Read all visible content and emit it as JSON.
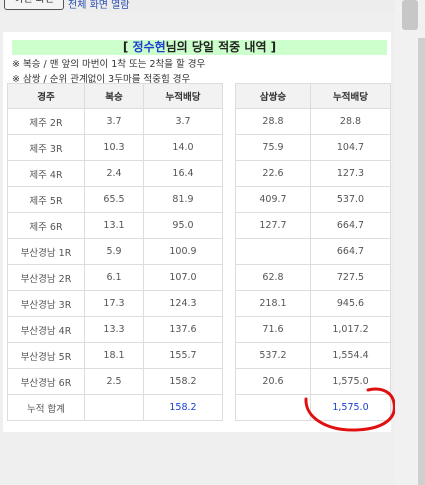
{
  "top": {
    "button_label": "이전 화면",
    "link_text": "전체 화면 열람"
  },
  "header": {
    "title_prefix": "[ ",
    "player_name": "정수현",
    "title_suffix": "님의 당일 적중 내역 ]",
    "note1": "※ 복승 / 맨 앞의 마번이 1착 또는 2착을 할 경우",
    "note2": "※ 삼쌍 / 순위 관계없이 3두마를 적중힘 경우"
  },
  "left_table": {
    "headers": [
      "경주",
      "복승",
      "누적배당"
    ],
    "rows": [
      [
        "제주 2R",
        "3.7",
        "3.7"
      ],
      [
        "제주 3R",
        "10.3",
        "14.0"
      ],
      [
        "제주 4R",
        "2.4",
        "16.4"
      ],
      [
        "제주 5R",
        "65.5",
        "81.9"
      ],
      [
        "제주 6R",
        "13.1",
        "95.0"
      ],
      [
        "부산경남 1R",
        "5.9",
        "100.9"
      ],
      [
        "부산경남 2R",
        "6.1",
        "107.0"
      ],
      [
        "부산경남 3R",
        "17.3",
        "124.3"
      ],
      [
        "부산경남 4R",
        "13.3",
        "137.6"
      ],
      [
        "부산경남 5R",
        "18.1",
        "155.7"
      ],
      [
        "부산경남 6R",
        "2.5",
        "158.2"
      ]
    ],
    "total_label": "누적 합계",
    "total_value": "158.2"
  },
  "right_table": {
    "headers": [
      "삼쌍승",
      "누적배당"
    ],
    "rows": [
      [
        "28.8",
        "28.8"
      ],
      [
        "75.9",
        "104.7"
      ],
      [
        "22.6",
        "127.3"
      ],
      [
        "409.7",
        "537.0"
      ],
      [
        "127.7",
        "664.7"
      ],
      [
        "",
        "664.7"
      ],
      [
        "62.8",
        "727.5"
      ],
      [
        "218.1",
        "945.6"
      ],
      [
        "71.6",
        "1,017.2"
      ],
      [
        "537.2",
        "1,554.4"
      ],
      [
        "20.6",
        "1,575.0"
      ]
    ],
    "total_value": "1,575.0"
  },
  "colors": {
    "title_bg": "#ccffcc",
    "accent_blue": "#1a3fd0",
    "annotation_red": "#e01010"
  }
}
